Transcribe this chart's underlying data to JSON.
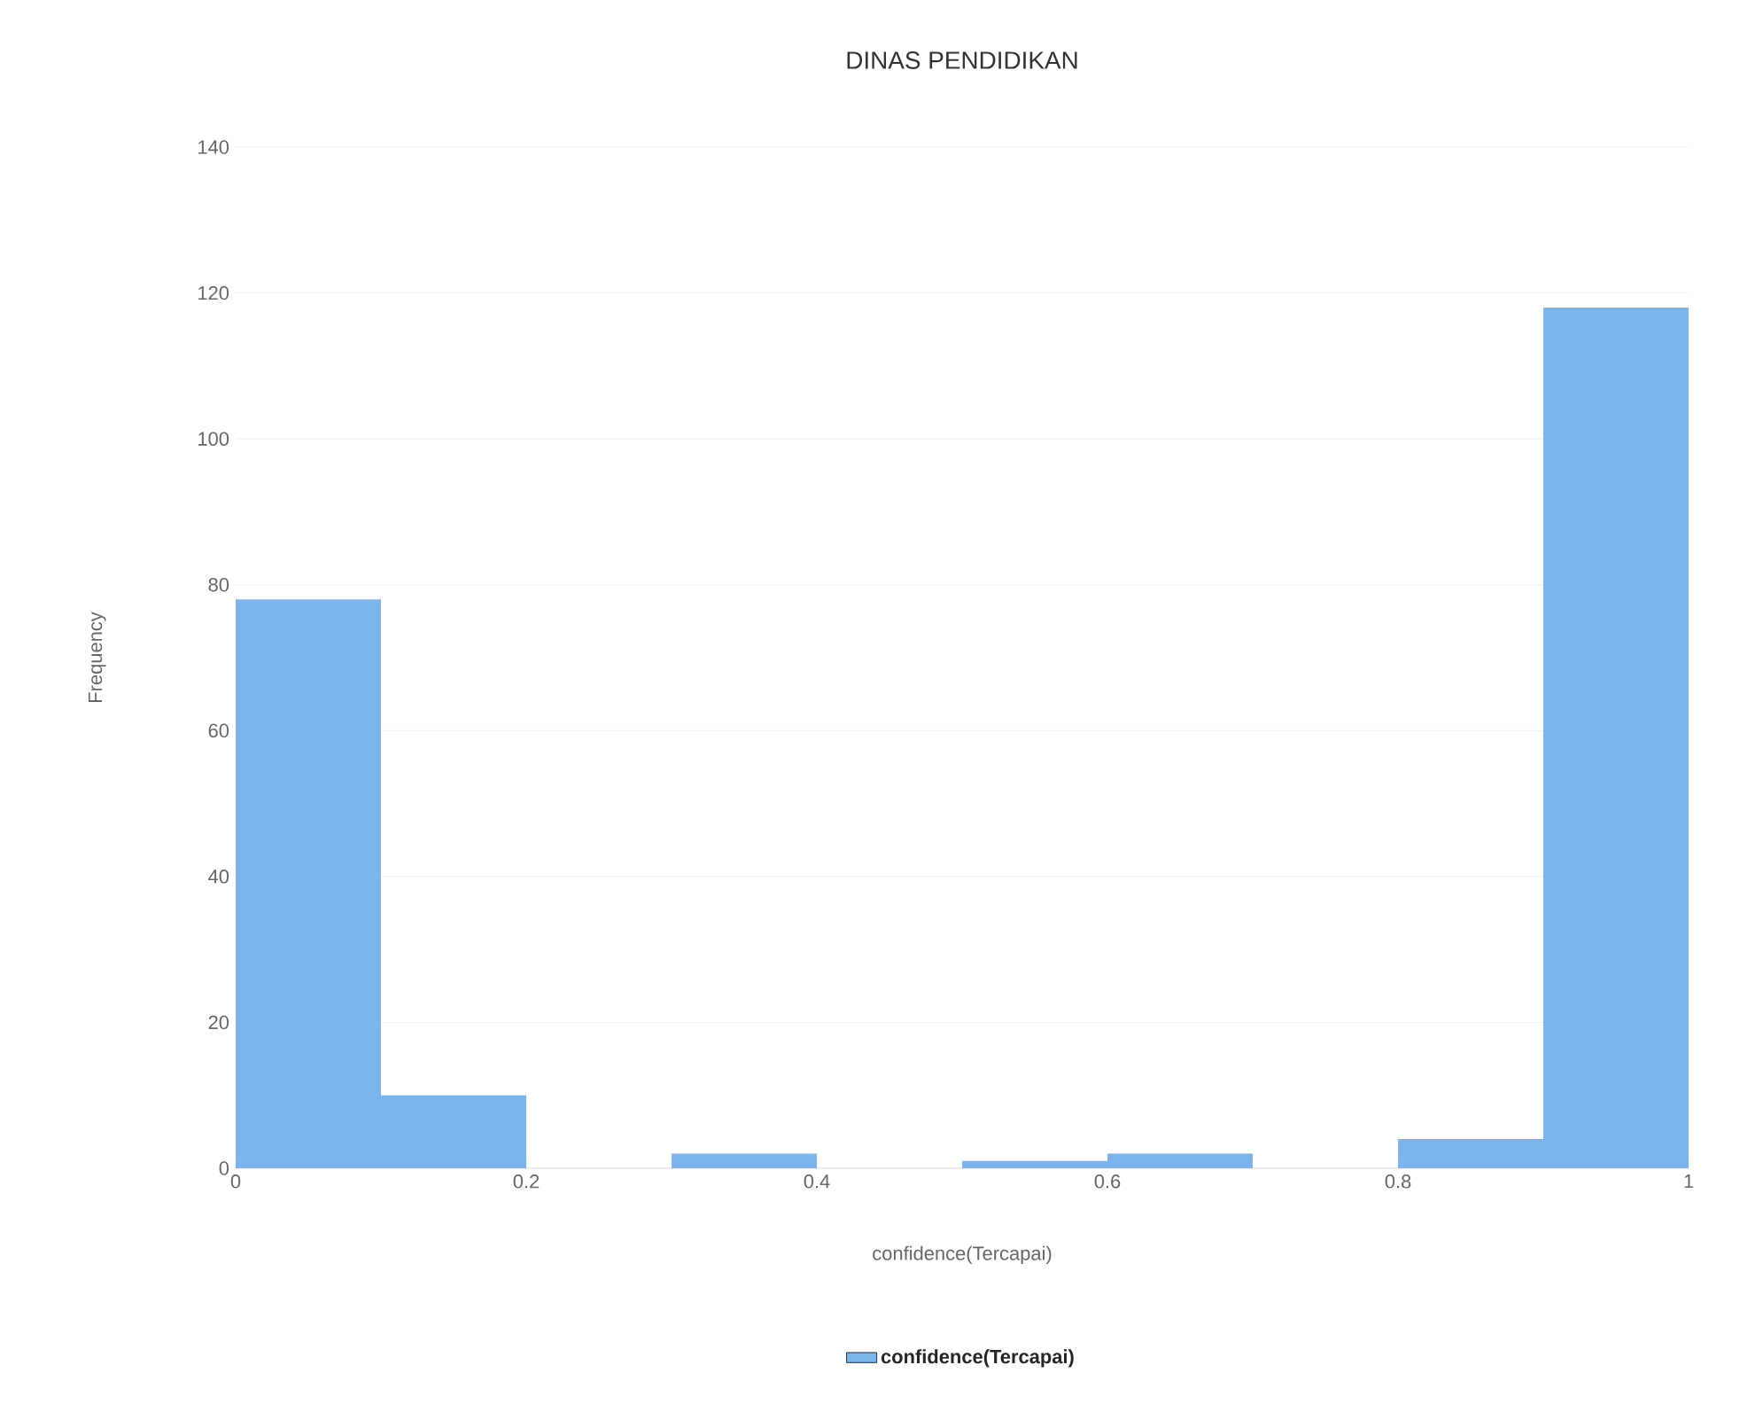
{
  "chart_data": {
    "type": "histogram",
    "title": "DINAS PENDIDIKAN",
    "xlabel": "confidence(Tercapai)",
    "ylabel": "Frequency",
    "bins": [
      0,
      0.1,
      0.2,
      0.3,
      0.4,
      0.5,
      0.6,
      0.7,
      0.8,
      0.9,
      1
    ],
    "series": [
      {
        "name": "confidence(Tercapai)",
        "color": "#7cb5ec",
        "values": [
          78,
          10,
          0,
          2,
          0,
          1,
          2,
          0,
          4,
          118
        ]
      }
    ],
    "xlim": [
      0,
      1
    ],
    "ylim": [
      0,
      140
    ],
    "xticks": [
      0,
      0.2,
      0.4,
      0.6,
      0.8,
      1
    ],
    "yticks": [
      0,
      20,
      40,
      60,
      80,
      100,
      120,
      140
    ],
    "grid": "y",
    "legend": "bottom"
  }
}
